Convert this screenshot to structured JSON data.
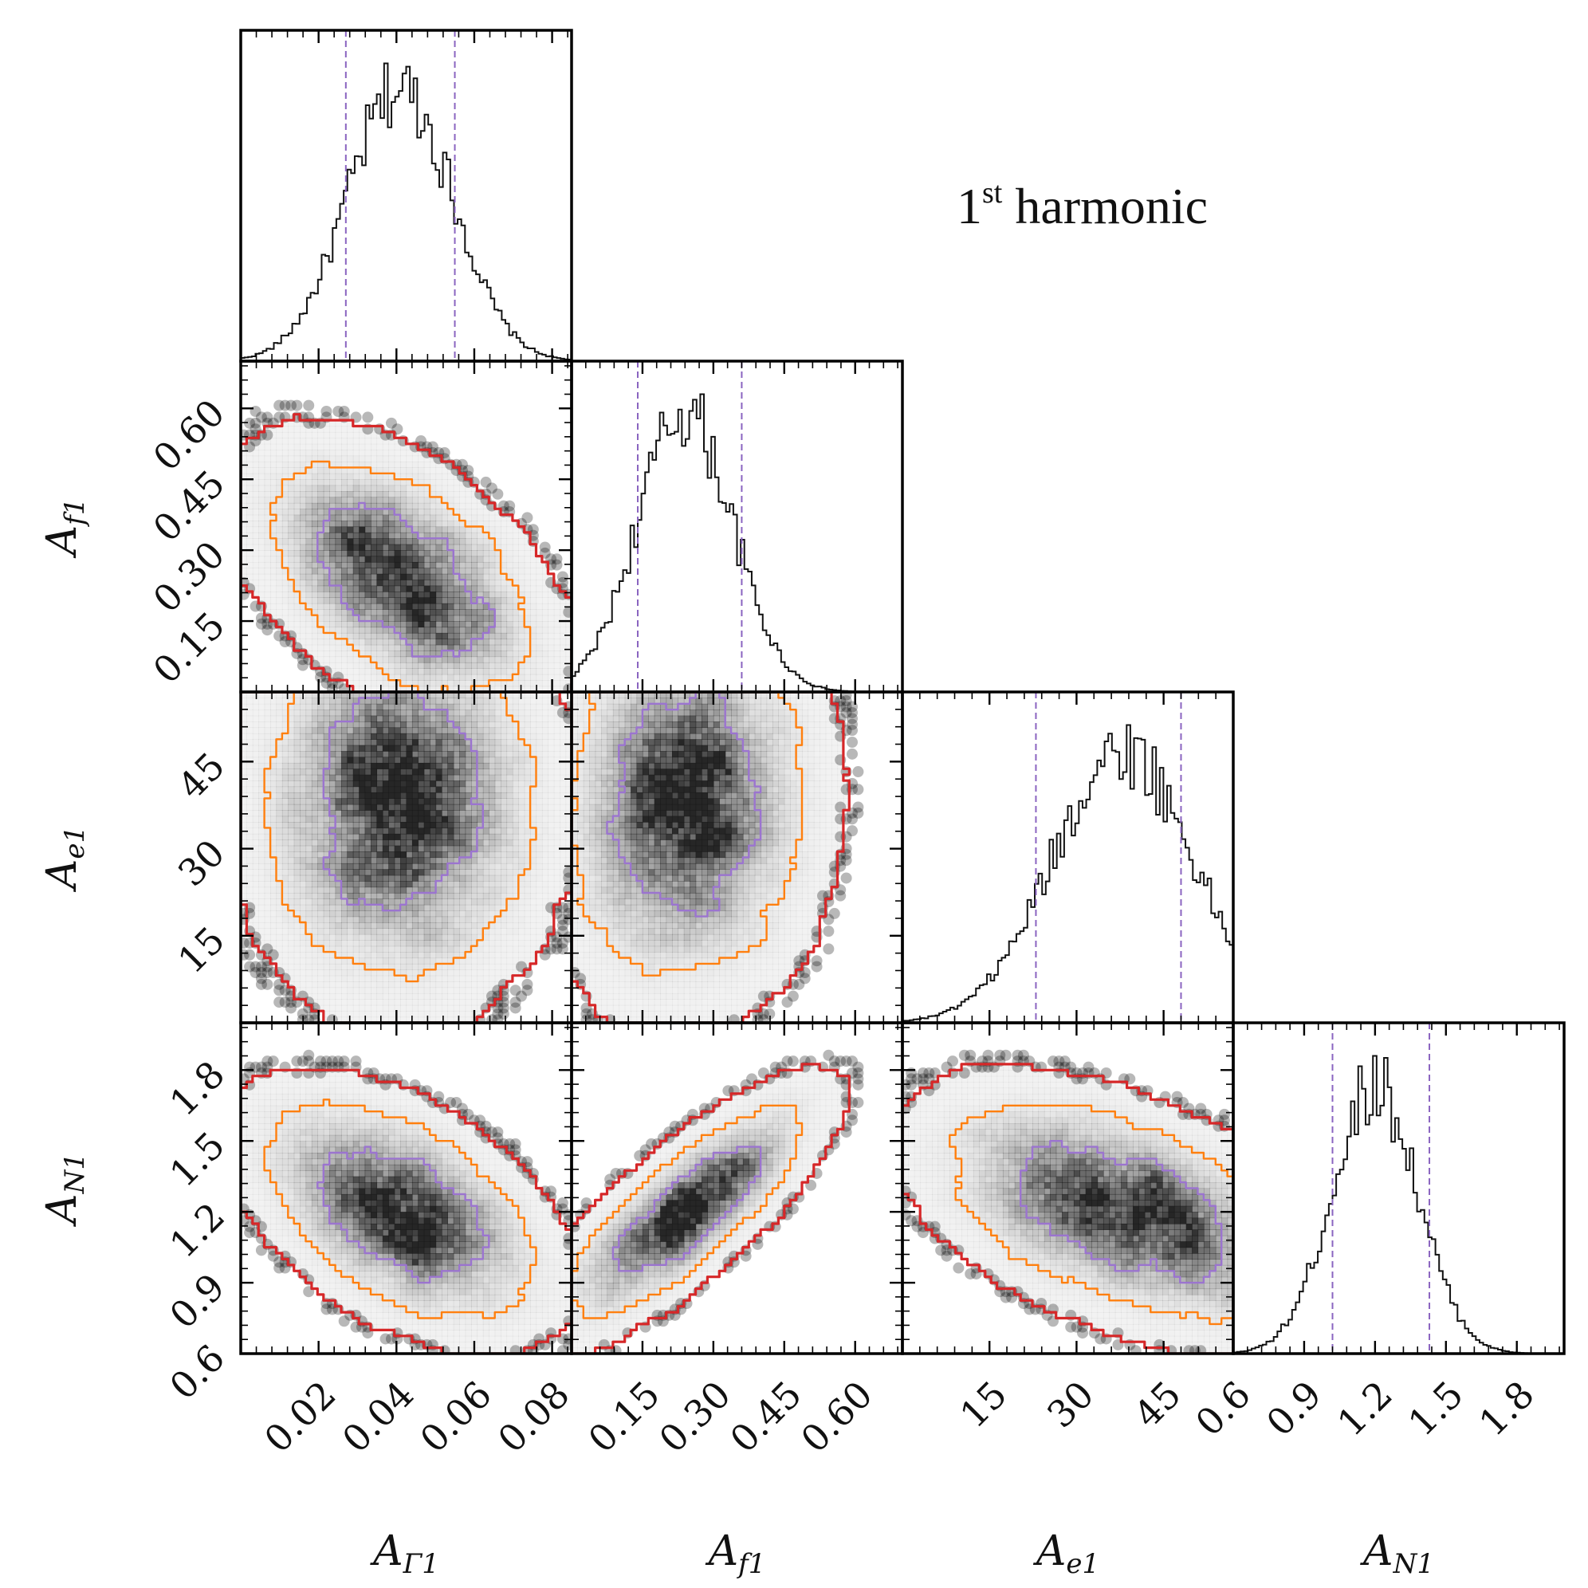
{
  "figure": {
    "title": "1st harmonic",
    "title_main": "1",
    "title_sup": "st",
    "title_rest": " harmonic"
  },
  "colors": {
    "hist_line": "#111111",
    "quantile_line": "#8a64c0",
    "contour_inner": "#9b74cf",
    "contour_mid": "#ff7f0e",
    "contour_outer": "#d62728",
    "density_dark": "#1a1a1a",
    "frame": "#000000"
  },
  "chart_data": {
    "type": "corner",
    "params": [
      {
        "name": "A_Γ1",
        "symbol": "A",
        "sub": "Γ1",
        "range": [
          0.0,
          0.085
        ],
        "ticks": [
          0.02,
          0.04,
          0.06,
          0.08
        ],
        "tick_labels": [
          "0.02",
          "0.04",
          "0.06",
          "0.08"
        ],
        "mean": 0.041,
        "sd": 0.0135,
        "quantiles": [
          0.027,
          0.055
        ]
      },
      {
        "name": "A_f1",
        "symbol": "A",
        "sub": "f1",
        "range": [
          0.0,
          0.7
        ],
        "ticks": [
          0.15,
          0.3,
          0.45,
          0.6
        ],
        "tick_labels": [
          "0.15",
          "0.30",
          "0.45",
          "0.60"
        ],
        "mean": 0.24,
        "sd": 0.1,
        "quantiles": [
          0.14,
          0.36
        ]
      },
      {
        "name": "A_e1",
        "symbol": "A",
        "sub": "e1",
        "range": [
          0,
          57
        ],
        "ticks": [
          15,
          30,
          45
        ],
        "tick_labels": [
          "15",
          "30",
          "45"
        ],
        "mean": 38,
        "sd": 12,
        "quantiles": [
          23,
          48
        ]
      },
      {
        "name": "A_N1",
        "symbol": "A",
        "sub": "N1",
        "range": [
          0.6,
          2.0
        ],
        "ticks": [
          0.6,
          0.9,
          1.2,
          1.5,
          1.8
        ],
        "tick_labels": [
          "0.6",
          "0.9",
          "1.2",
          "1.5",
          "1.8"
        ],
        "mean": 1.2,
        "sd": 0.18,
        "quantiles": [
          1.02,
          1.43
        ]
      }
    ],
    "correlations": [
      {
        "pair": [
          "A_f1",
          "A_Γ1"
        ],
        "rho": -0.5
      },
      {
        "pair": [
          "A_e1",
          "A_Γ1"
        ],
        "rho": 0.0
      },
      {
        "pair": [
          "A_e1",
          "A_f1"
        ],
        "rho": 0.05
      },
      {
        "pair": [
          "A_N1",
          "A_Γ1"
        ],
        "rho": -0.5
      },
      {
        "pair": [
          "A_N1",
          "A_f1"
        ],
        "rho": 0.8
      },
      {
        "pair": [
          "A_N1",
          "A_e1"
        ],
        "rho": -0.5
      }
    ],
    "contour_levels_sigma": [
      1,
      2,
      3
    ],
    "histogram": "step"
  }
}
